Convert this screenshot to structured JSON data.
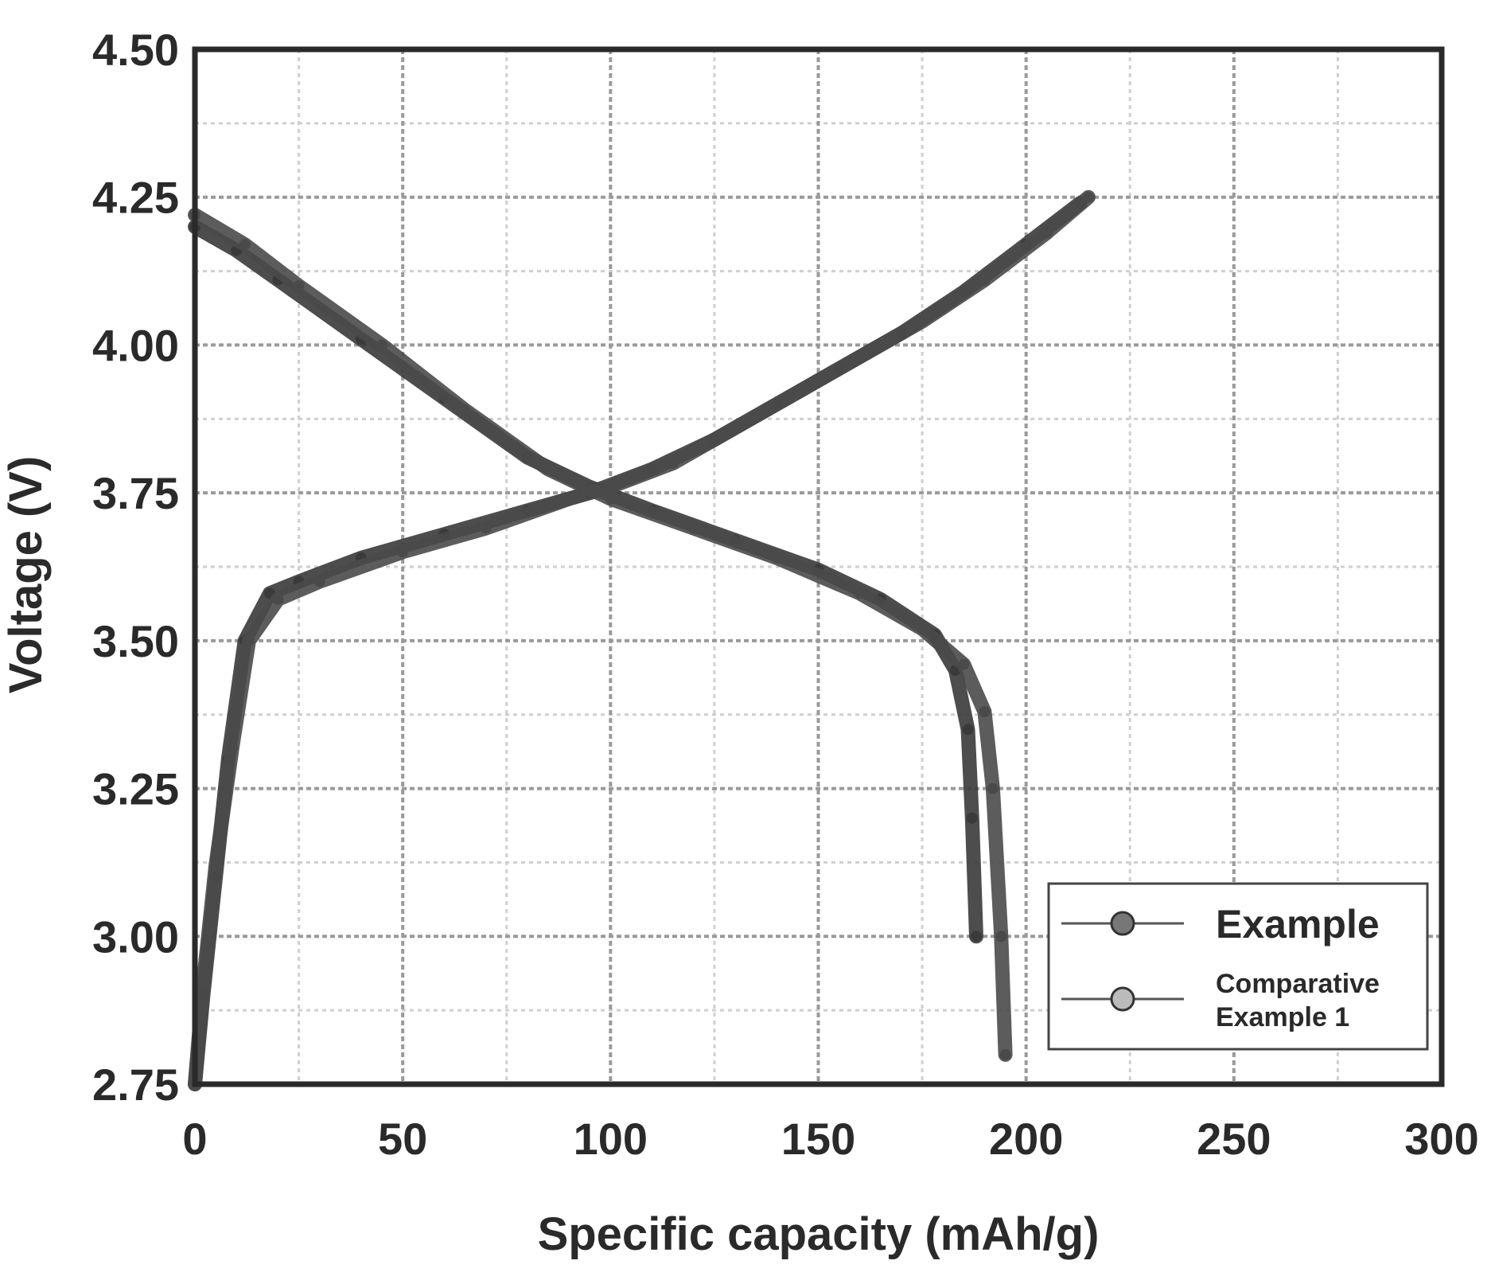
{
  "chart_data": {
    "type": "line",
    "xlabel": "Specific capacity (mAh/g)",
    "ylabel": "Voltage (V)",
    "xlim": [
      0,
      300
    ],
    "ylim": [
      2.75,
      4.5
    ],
    "xticks": [
      0,
      50,
      100,
      150,
      200,
      250,
      300
    ],
    "xtick_labels": [
      "0",
      "50",
      "100",
      "150",
      "200",
      "250",
      "300"
    ],
    "yticks": [
      2.75,
      3.0,
      3.25,
      3.5,
      3.75,
      4.0,
      4.25,
      4.5
    ],
    "ytick_labels": [
      "2.75",
      "3.00",
      "3.25",
      "3.50",
      "3.75",
      "4.00",
      "4.25",
      "4.50"
    ],
    "grid": true,
    "minor_grid": true,
    "legend_position": "bottom-right",
    "legend": [
      "Example",
      "Comparative Example 1"
    ],
    "series": [
      {
        "name": "Example",
        "color": "#3a3a3a",
        "charge": [
          [
            0,
            2.75
          ],
          [
            2,
            2.9
          ],
          [
            5,
            3.1
          ],
          [
            8,
            3.3
          ],
          [
            12,
            3.5
          ],
          [
            18,
            3.58
          ],
          [
            25,
            3.6
          ],
          [
            40,
            3.64
          ],
          [
            60,
            3.68
          ],
          [
            80,
            3.72
          ],
          [
            95,
            3.75
          ],
          [
            110,
            3.79
          ],
          [
            125,
            3.84
          ],
          [
            140,
            3.9
          ],
          [
            155,
            3.96
          ],
          [
            170,
            4.02
          ],
          [
            185,
            4.09
          ],
          [
            200,
            4.17
          ],
          [
            213,
            4.24
          ]
        ],
        "discharge": [
          [
            0,
            4.2
          ],
          [
            10,
            4.16
          ],
          [
            20,
            4.11
          ],
          [
            40,
            4.01
          ],
          [
            60,
            3.91
          ],
          [
            80,
            3.81
          ],
          [
            95,
            3.76
          ],
          [
            110,
            3.72
          ],
          [
            130,
            3.67
          ],
          [
            150,
            3.62
          ],
          [
            165,
            3.57
          ],
          [
            178,
            3.51
          ],
          [
            183,
            3.45
          ],
          [
            186,
            3.35
          ],
          [
            187,
            3.2
          ],
          [
            188,
            3.0
          ]
        ]
      },
      {
        "name": "Comparative Example 1",
        "color": "#4a4a4a",
        "charge": [
          [
            0,
            2.75
          ],
          [
            2,
            2.92
          ],
          [
            5,
            3.12
          ],
          [
            9,
            3.32
          ],
          [
            13,
            3.5
          ],
          [
            20,
            3.57
          ],
          [
            30,
            3.6
          ],
          [
            50,
            3.65
          ],
          [
            70,
            3.69
          ],
          [
            90,
            3.74
          ],
          [
            100,
            3.76
          ],
          [
            115,
            3.8
          ],
          [
            130,
            3.86
          ],
          [
            145,
            3.92
          ],
          [
            160,
            3.98
          ],
          [
            175,
            4.04
          ],
          [
            190,
            4.11
          ],
          [
            205,
            4.19
          ],
          [
            215,
            4.25
          ]
        ],
        "discharge": [
          [
            0,
            4.22
          ],
          [
            12,
            4.17
          ],
          [
            25,
            4.1
          ],
          [
            45,
            4.0
          ],
          [
            65,
            3.89
          ],
          [
            85,
            3.79
          ],
          [
            100,
            3.74
          ],
          [
            120,
            3.69
          ],
          [
            140,
            3.64
          ],
          [
            160,
            3.58
          ],
          [
            175,
            3.52
          ],
          [
            185,
            3.46
          ],
          [
            190,
            3.38
          ],
          [
            192,
            3.25
          ],
          [
            194,
            3.0
          ],
          [
            195,
            2.8
          ]
        ]
      }
    ]
  }
}
